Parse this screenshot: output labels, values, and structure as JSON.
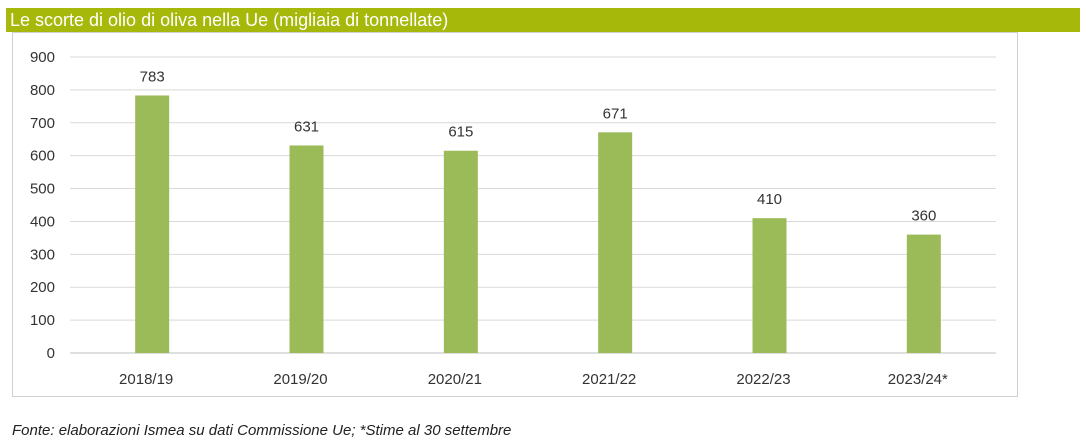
{
  "title": "Le scorte di olio di oliva nella Ue (migliaia di tonnellate)",
  "source": "Fonte: elaborazioni Ismea su dati Commissione Ue; *Stime al 30 settembre",
  "colors": {
    "bar": "#9bbb59",
    "title_bg": "#a6b80a",
    "grid": "#d9d9d9",
    "axis": "#bfbfbf",
    "text": "#333333"
  },
  "chart_data": {
    "type": "bar",
    "categories": [
      "2018/19",
      "2019/20",
      "2020/21",
      "2021/22",
      "2022/23",
      "2023/24*"
    ],
    "values": [
      783,
      631,
      615,
      671,
      410,
      360
    ],
    "data_labels": [
      "783",
      "631",
      "615",
      "671",
      "410",
      "360"
    ],
    "ylim": [
      0,
      900
    ],
    "yticks": [
      0,
      100,
      200,
      300,
      400,
      500,
      600,
      700,
      800,
      900
    ],
    "ytick_labels": [
      "0",
      "100",
      "200",
      "300",
      "400",
      "500",
      "600",
      "700",
      "800",
      "900"
    ],
    "grid": true,
    "legend": "none"
  }
}
